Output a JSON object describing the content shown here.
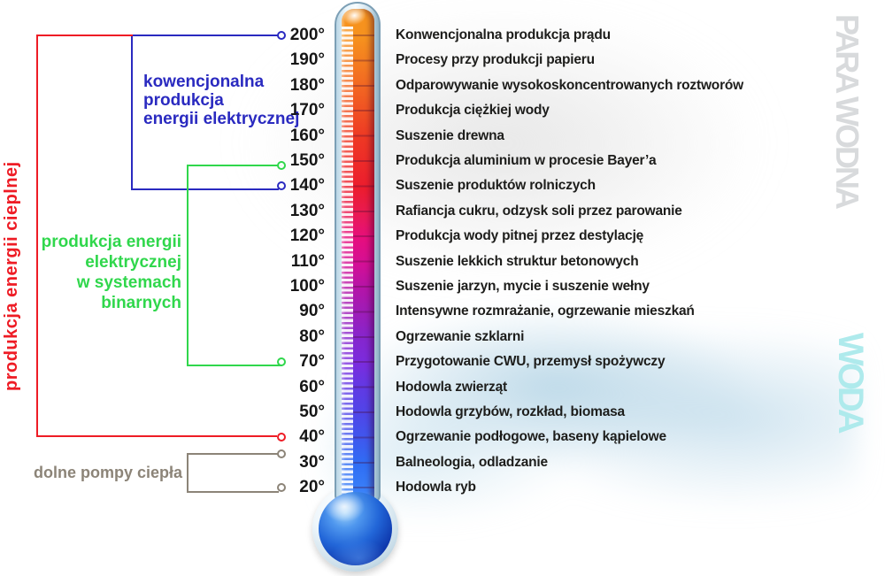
{
  "side_labels": {
    "steam": "PARA WODNA",
    "water": "WODA",
    "steam_color": "#d8dadc",
    "water_color": "#aeeaec"
  },
  "thermometer": {
    "degree_suffix": "°",
    "top_color": "#F7941E",
    "bottom_color": "#3A80F8",
    "scale": [
      {
        "temp": "200°",
        "use": "Konwencjonalna produkcja prądu"
      },
      {
        "temp": "190°",
        "use": "Procesy przy produkcji papieru"
      },
      {
        "temp": "180°",
        "use": "Odparowywanie wysokoskoncentrowanych roztworów"
      },
      {
        "temp": "170°",
        "use": "Produkcja ciężkiej wody"
      },
      {
        "temp": "160°",
        "use": "Suszenie drewna"
      },
      {
        "temp": "150°",
        "use": "Produkcja aluminium w procesie Bayer’a"
      },
      {
        "temp": "140°",
        "use": "Suszenie produktów rolniczych"
      },
      {
        "temp": "130°",
        "use": "Rafiancja cukru, odzysk soli przez parowanie"
      },
      {
        "temp": "120°",
        "use": "Produkcja wody pitnej przez destylację"
      },
      {
        "temp": "110°",
        "use": "Suszenie lekkich struktur betonowych"
      },
      {
        "temp": "100°",
        "use": "Suszenie jarzyn, mycie i suszenie wełny"
      },
      {
        "temp": "90°",
        "use": "Intensywne rozmrażanie, ogrzewanie mieszkań"
      },
      {
        "temp": "80°",
        "use": "Ogrzewanie szklarni"
      },
      {
        "temp": "70°",
        "use": "Przygotowanie CWU, przemysł spożywczy"
      },
      {
        "temp": "60°",
        "use": "Hodowla zwierząt"
      },
      {
        "temp": "50°",
        "use": "Hodowla grzybów, rozkład, biomasa"
      },
      {
        "temp": "40°",
        "use": "Ogrzewanie podłogowe, baseny kąpielowe"
      },
      {
        "temp": "30°",
        "use": "Balneologia, odladzanie"
      },
      {
        "temp": "20°",
        "use": "Hodowla ryb"
      }
    ]
  },
  "groups": [
    {
      "id": "conventional",
      "label": "kowencjonalna\nprodukcja\nenergii elektrycznej",
      "color": "#2a2ac0",
      "from_temp": 200,
      "to_temp": 140,
      "dot_temps": [
        200,
        140
      ]
    },
    {
      "id": "binary",
      "label": "produkcja energii\nelektrycznej\nw systemach\nbinarnych",
      "color": "#30d74c",
      "from_temp": 150,
      "to_temp": 70,
      "dot_temps": [
        150,
        70
      ]
    },
    {
      "id": "thermal",
      "label": "produkcja energii cieplnej",
      "color": "#ee1c25",
      "from_temp": 200,
      "to_temp": 40,
      "dot_temps": [
        40
      ]
    },
    {
      "id": "heat_pumps",
      "label": "dolne pompy ciepła",
      "color": "#8c8478",
      "from_temp": 30,
      "to_temp": 20,
      "dot_temps": [
        30,
        20
      ]
    }
  ]
}
